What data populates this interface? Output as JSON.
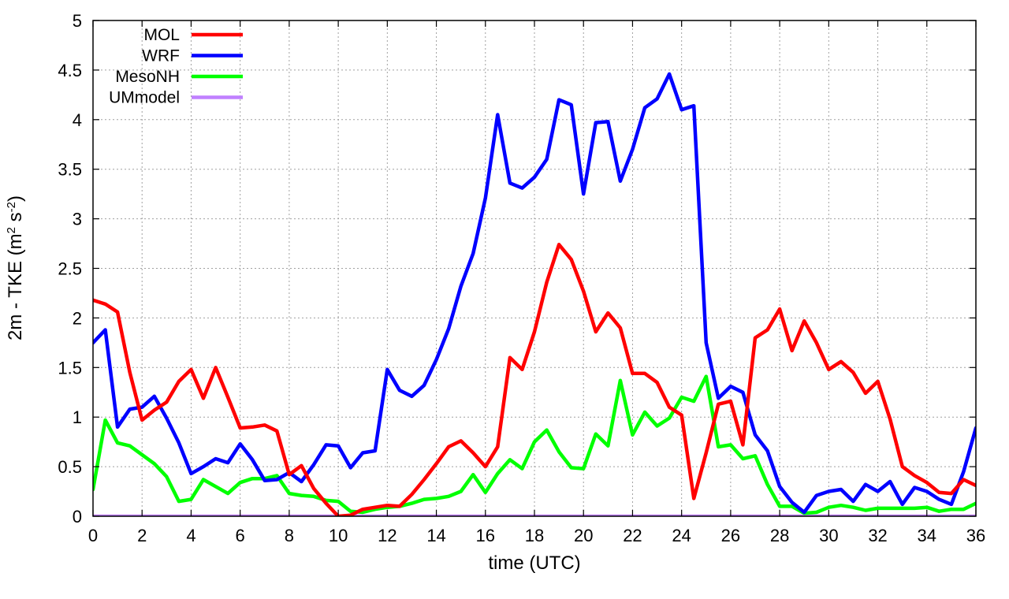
{
  "chart_data": {
    "type": "line",
    "xlabel": "time (UTC)",
    "ylabel": "2m - TKE (m2 s-2)",
    "ylabel_parts": {
      "base": "2m - TKE (m",
      "sup1": "2",
      "mid": " s",
      "sup2": "-2",
      "end": ")"
    },
    "xlim": [
      0,
      36
    ],
    "ylim": [
      0,
      5
    ],
    "xticks": [
      0,
      2,
      4,
      6,
      8,
      10,
      12,
      14,
      16,
      18,
      20,
      22,
      24,
      26,
      28,
      30,
      32,
      34,
      36
    ],
    "yticks": [
      0,
      0.5,
      1,
      1.5,
      2,
      2.5,
      3,
      3.5,
      4,
      4.5,
      5
    ],
    "ytick_labels": [
      "0",
      "0.5",
      "1",
      "1.5",
      "2",
      "2.5",
      "3",
      "3.5",
      "4",
      "4.5",
      "5"
    ],
    "grid": true,
    "legend_position": "top-left",
    "series": [
      {
        "name": "MOL",
        "color": "#ff0000",
        "points": [
          [
            0,
            2.18
          ],
          [
            0.5,
            2.14
          ],
          [
            1,
            2.06
          ],
          [
            1.5,
            1.45
          ],
          [
            2,
            0.97
          ],
          [
            2.5,
            1.07
          ],
          [
            3,
            1.15
          ],
          [
            3.5,
            1.36
          ],
          [
            4,
            1.48
          ],
          [
            4.5,
            1.19
          ],
          [
            5,
            1.5
          ],
          [
            5.5,
            1.2
          ],
          [
            6,
            0.89
          ],
          [
            6.5,
            0.9
          ],
          [
            7,
            0.92
          ],
          [
            7.5,
            0.86
          ],
          [
            8,
            0.42
          ],
          [
            8.5,
            0.51
          ],
          [
            9,
            0.28
          ],
          [
            9.5,
            0.13
          ],
          [
            10,
            0
          ],
          [
            10.5,
            0.01
          ],
          [
            11,
            0.07
          ],
          [
            11.5,
            0.09
          ],
          [
            12,
            0.11
          ],
          [
            12.5,
            0.1
          ],
          [
            13,
            0.22
          ],
          [
            13.5,
            0.37
          ],
          [
            14,
            0.53
          ],
          [
            14.5,
            0.7
          ],
          [
            15,
            0.76
          ],
          [
            15.5,
            0.64
          ],
          [
            16,
            0.5
          ],
          [
            16.5,
            0.7
          ],
          [
            17,
            1.6
          ],
          [
            17.5,
            1.48
          ],
          [
            18,
            1.86
          ],
          [
            18.5,
            2.36
          ],
          [
            19,
            2.74
          ],
          [
            19.5,
            2.59
          ],
          [
            20,
            2.27
          ],
          [
            20.5,
            1.86
          ],
          [
            21,
            2.05
          ],
          [
            21.5,
            1.9
          ],
          [
            22,
            1.44
          ],
          [
            22.5,
            1.44
          ],
          [
            23,
            1.35
          ],
          [
            23.5,
            1.1
          ],
          [
            24,
            1.02
          ],
          [
            24.5,
            0.18
          ],
          [
            25,
            0.64
          ],
          [
            25.5,
            1.13
          ],
          [
            26,
            1.16
          ],
          [
            26.5,
            0.72
          ],
          [
            27,
            1.8
          ],
          [
            27.5,
            1.88
          ],
          [
            28,
            2.09
          ],
          [
            28.5,
            1.67
          ],
          [
            29,
            1.97
          ],
          [
            29.5,
            1.75
          ],
          [
            30,
            1.48
          ],
          [
            30.5,
            1.56
          ],
          [
            31,
            1.45
          ],
          [
            31.5,
            1.24
          ],
          [
            32,
            1.36
          ],
          [
            32.5,
            0.98
          ],
          [
            33,
            0.5
          ],
          [
            33.5,
            0.41
          ],
          [
            34,
            0.34
          ],
          [
            34.5,
            0.24
          ],
          [
            35,
            0.23
          ],
          [
            35.5,
            0.37
          ],
          [
            36,
            0.31
          ]
        ]
      },
      {
        "name": "WRF",
        "color": "#0000ff",
        "points": [
          [
            0,
            1.75
          ],
          [
            0.5,
            1.88
          ],
          [
            1,
            0.9
          ],
          [
            1.5,
            1.08
          ],
          [
            2,
            1.1
          ],
          [
            2.5,
            1.21
          ],
          [
            3,
            0.99
          ],
          [
            3.5,
            0.74
          ],
          [
            4,
            0.43
          ],
          [
            4.5,
            0.5
          ],
          [
            5,
            0.58
          ],
          [
            5.5,
            0.54
          ],
          [
            6,
            0.73
          ],
          [
            6.5,
            0.57
          ],
          [
            7,
            0.36
          ],
          [
            7.5,
            0.37
          ],
          [
            8,
            0.44
          ],
          [
            8.5,
            0.35
          ],
          [
            9,
            0.52
          ],
          [
            9.5,
            0.72
          ],
          [
            10,
            0.71
          ],
          [
            10.5,
            0.49
          ],
          [
            11,
            0.64
          ],
          [
            11.5,
            0.66
          ],
          [
            12,
            1.48
          ],
          [
            12.5,
            1.27
          ],
          [
            13,
            1.21
          ],
          [
            13.5,
            1.32
          ],
          [
            14,
            1.58
          ],
          [
            14.5,
            1.89
          ],
          [
            15,
            2.32
          ],
          [
            15.5,
            2.65
          ],
          [
            16,
            3.21
          ],
          [
            16.5,
            4.05
          ],
          [
            17,
            3.36
          ],
          [
            17.5,
            3.31
          ],
          [
            18,
            3.42
          ],
          [
            18.5,
            3.6
          ],
          [
            19,
            4.2
          ],
          [
            19.5,
            4.15
          ],
          [
            20,
            3.25
          ],
          [
            20.5,
            3.97
          ],
          [
            21,
            3.98
          ],
          [
            21.5,
            3.38
          ],
          [
            22,
            3.7
          ],
          [
            22.5,
            4.12
          ],
          [
            23,
            4.21
          ],
          [
            23.5,
            4.46
          ],
          [
            24,
            4.1
          ],
          [
            24.5,
            4.14
          ],
          [
            25,
            1.75
          ],
          [
            25.5,
            1.19
          ],
          [
            26,
            1.31
          ],
          [
            26.5,
            1.25
          ],
          [
            27,
            0.82
          ],
          [
            27.5,
            0.66
          ],
          [
            28,
            0.3
          ],
          [
            28.5,
            0.14
          ],
          [
            29,
            0.04
          ],
          [
            29.5,
            0.21
          ],
          [
            30,
            0.25
          ],
          [
            30.5,
            0.27
          ],
          [
            31,
            0.15
          ],
          [
            31.5,
            0.32
          ],
          [
            32,
            0.25
          ],
          [
            32.5,
            0.35
          ],
          [
            33,
            0.12
          ],
          [
            33.5,
            0.29
          ],
          [
            34,
            0.25
          ],
          [
            34.5,
            0.17
          ],
          [
            35,
            0.12
          ],
          [
            35.5,
            0.45
          ],
          [
            36,
            0.89
          ]
        ]
      },
      {
        "name": "MesoNH",
        "color": "#00ff00",
        "points": [
          [
            0,
            0.27
          ],
          [
            0.5,
            0.97
          ],
          [
            1,
            0.74
          ],
          [
            1.5,
            0.71
          ],
          [
            2,
            0.62
          ],
          [
            2.5,
            0.53
          ],
          [
            3,
            0.4
          ],
          [
            3.5,
            0.15
          ],
          [
            4,
            0.17
          ],
          [
            4.5,
            0.37
          ],
          [
            5,
            0.3
          ],
          [
            5.5,
            0.23
          ],
          [
            6,
            0.34
          ],
          [
            6.5,
            0.38
          ],
          [
            7,
            0.38
          ],
          [
            7.5,
            0.41
          ],
          [
            8,
            0.23
          ],
          [
            8.5,
            0.21
          ],
          [
            9,
            0.2
          ],
          [
            9.5,
            0.16
          ],
          [
            10,
            0.15
          ],
          [
            10.5,
            0.05
          ],
          [
            11,
            0.04
          ],
          [
            11.5,
            0.07
          ],
          [
            12,
            0.09
          ],
          [
            12.5,
            0.1
          ],
          [
            13,
            0.13
          ],
          [
            13.5,
            0.17
          ],
          [
            14,
            0.18
          ],
          [
            14.5,
            0.2
          ],
          [
            15,
            0.25
          ],
          [
            15.5,
            0.42
          ],
          [
            16,
            0.24
          ],
          [
            16.5,
            0.43
          ],
          [
            17,
            0.57
          ],
          [
            17.5,
            0.48
          ],
          [
            18,
            0.75
          ],
          [
            18.5,
            0.87
          ],
          [
            19,
            0.65
          ],
          [
            19.5,
            0.49
          ],
          [
            20,
            0.48
          ],
          [
            20.5,
            0.83
          ],
          [
            21,
            0.71
          ],
          [
            21.5,
            1.37
          ],
          [
            22,
            0.82
          ],
          [
            22.5,
            1.05
          ],
          [
            23,
            0.91
          ],
          [
            23.5,
            0.99
          ],
          [
            24,
            1.2
          ],
          [
            24.5,
            1.16
          ],
          [
            25,
            1.41
          ],
          [
            25.5,
            0.7
          ],
          [
            26,
            0.72
          ],
          [
            26.5,
            0.58
          ],
          [
            27,
            0.61
          ],
          [
            27.5,
            0.32
          ],
          [
            28,
            0.1
          ],
          [
            28.5,
            0.1
          ],
          [
            29,
            0.03
          ],
          [
            29.5,
            0.04
          ],
          [
            30,
            0.09
          ],
          [
            30.5,
            0.11
          ],
          [
            31,
            0.09
          ],
          [
            31.5,
            0.06
          ],
          [
            32,
            0.08
          ],
          [
            32.5,
            0.08
          ],
          [
            33,
            0.08
          ],
          [
            33.5,
            0.08
          ],
          [
            34,
            0.09
          ],
          [
            34.5,
            0.05
          ],
          [
            35,
            0.07
          ],
          [
            35.5,
            0.07
          ],
          [
            36,
            0.13
          ]
        ]
      },
      {
        "name": "UMmodel",
        "color": "#c080ff",
        "points": [
          [
            0,
            0
          ],
          [
            36,
            0
          ]
        ]
      }
    ]
  }
}
